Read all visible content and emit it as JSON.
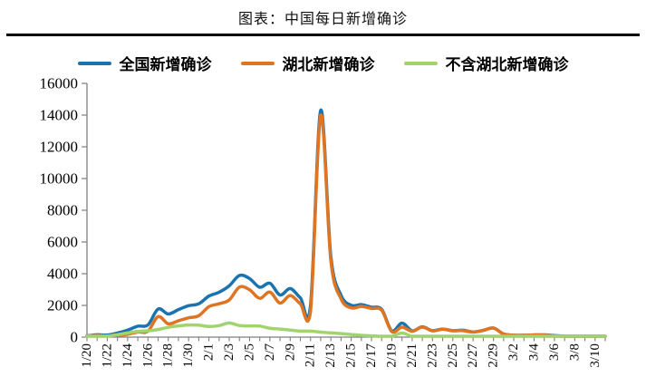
{
  "header": {
    "title": "图表：中国每日新增确诊"
  },
  "chart_data": {
    "type": "line",
    "title": "图表：中国每日新增确诊",
    "smooth": true,
    "grid": false,
    "legend_position": "top",
    "axis_color": "#7f7f7f",
    "text_color": "#000000",
    "ylim": [
      0,
      16000
    ],
    "y_tick_step": 2000,
    "x_label_every": 2,
    "categories": [
      "1/20",
      "1/21",
      "1/22",
      "1/23",
      "1/24",
      "1/25",
      "1/26",
      "1/27",
      "1/28",
      "1/29",
      "1/30",
      "1/31",
      "2/1",
      "2/2",
      "2/3",
      "2/4",
      "2/5",
      "2/6",
      "2/7",
      "2/8",
      "2/9",
      "2/10",
      "2/11",
      "2/12",
      "2/13",
      "2/14",
      "2/15",
      "2/16",
      "2/17",
      "2/18",
      "2/19",
      "2/20",
      "2/21",
      "2/22",
      "2/23",
      "2/24",
      "2/25",
      "2/26",
      "2/27",
      "2/28",
      "2/29",
      "3/1",
      "3/2",
      "3/3",
      "3/4",
      "3/5",
      "3/6",
      "3/7",
      "3/8",
      "3/9",
      "3/10",
      "3/11"
    ],
    "series": [
      {
        "name": "全国新增确诊",
        "color": "#1b74ae",
        "values": [
          77,
          149,
          131,
          259,
          444,
          688,
          769,
          1771,
          1459,
          1737,
          1982,
          2102,
          2590,
          2829,
          3235,
          3887,
          3694,
          3143,
          3399,
          2656,
          3062,
          2478,
          2015,
          14300,
          5090,
          2641,
          2009,
          2048,
          1886,
          1749,
          394,
          889,
          397,
          648,
          409,
          508,
          406,
          433,
          327,
          427,
          573,
          202,
          125,
          119,
          139,
          143,
          99,
          44,
          40,
          19,
          24,
          15
        ]
      },
      {
        "name": "湖北新增确诊",
        "color": "#df7522",
        "values": [
          72,
          105,
          69,
          105,
          180,
          323,
          371,
          1291,
          840,
          1032,
          1220,
          1347,
          1921,
          2103,
          2345,
          3156,
          2987,
          2447,
          2841,
          2147,
          2618,
          2097,
          1638,
          13988,
          4823,
          2420,
          1843,
          1933,
          1807,
          1693,
          349,
          631,
          366,
          630,
          398,
          499,
          401,
          409,
          318,
          423,
          570,
          196,
          114,
          115,
          134,
          126,
          74,
          41,
          36,
          17,
          13,
          8
        ]
      },
      {
        "name": "不含湖北新增确诊",
        "color": "#a2d46e",
        "values": [
          5,
          44,
          62,
          154,
          264,
          365,
          398,
          480,
          619,
          705,
          762,
          755,
          669,
          726,
          890,
          731,
          707,
          696,
          558,
          509,
          444,
          381,
          377,
          312,
          267,
          221,
          166,
          115,
          79,
          56,
          45,
          258,
          31,
          18,
          11,
          9,
          5,
          24,
          9,
          4,
          3,
          6,
          11,
          4,
          5,
          17,
          25,
          3,
          4,
          2,
          11,
          7
        ]
      }
    ]
  }
}
